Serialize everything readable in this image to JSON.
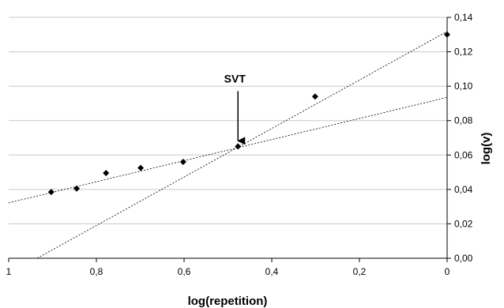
{
  "chart_data": {
    "type": "scatter",
    "xlabel": "log(repetition)",
    "ylabel": "log(v)",
    "x_axis_reversed": true,
    "xlim": [
      0,
      1
    ],
    "ylim": [
      0,
      0.14
    ],
    "x_ticks": [
      {
        "value": 1,
        "label": "1"
      },
      {
        "value": 0.8,
        "label": "0,8"
      },
      {
        "value": 0.6,
        "label": "0,6"
      },
      {
        "value": 0.4,
        "label": "0,4"
      },
      {
        "value": 0.2,
        "label": "0,2"
      },
      {
        "value": 0,
        "label": "0"
      }
    ],
    "y_ticks": [
      {
        "value": 0,
        "label": "0,00"
      },
      {
        "value": 0.02,
        "label": "0,02"
      },
      {
        "value": 0.04,
        "label": "0,04"
      },
      {
        "value": 0.06,
        "label": "0,06"
      },
      {
        "value": 0.08,
        "label": "0,08"
      },
      {
        "value": 0.1,
        "label": "0,10"
      },
      {
        "value": 0.12,
        "label": "0,12"
      },
      {
        "value": 0.14,
        "label": "0,14"
      }
    ],
    "grid": true,
    "y_axis_position": "right",
    "series": [
      {
        "marker": "diamond",
        "color": "#000000",
        "points": [
          {
            "x": 0.903,
            "y": 0.0385
          },
          {
            "x": 0.845,
            "y": 0.0405
          },
          {
            "x": 0.778,
            "y": 0.0495
          },
          {
            "x": 0.699,
            "y": 0.0525
          },
          {
            "x": 0.602,
            "y": 0.056
          },
          {
            "x": 0.477,
            "y": 0.065
          },
          {
            "x": 0.301,
            "y": 0.094
          },
          {
            "x": 0.0,
            "y": 0.13
          }
        ]
      }
    ],
    "trendlines": [
      {
        "style": "dashed",
        "from": {
          "x": 1.0,
          "y": 0.0322
        },
        "to": {
          "x": 0.0,
          "y": 0.0935
        }
      },
      {
        "style": "dashed",
        "from": {
          "x": 0.935,
          "y": 0.0
        },
        "to": {
          "x": 0.0,
          "y": 0.1318
        }
      }
    ],
    "annotations": [
      {
        "text": "SVT",
        "arrow_to": {
          "x": 0.477,
          "y": 0.065
        }
      }
    ]
  }
}
